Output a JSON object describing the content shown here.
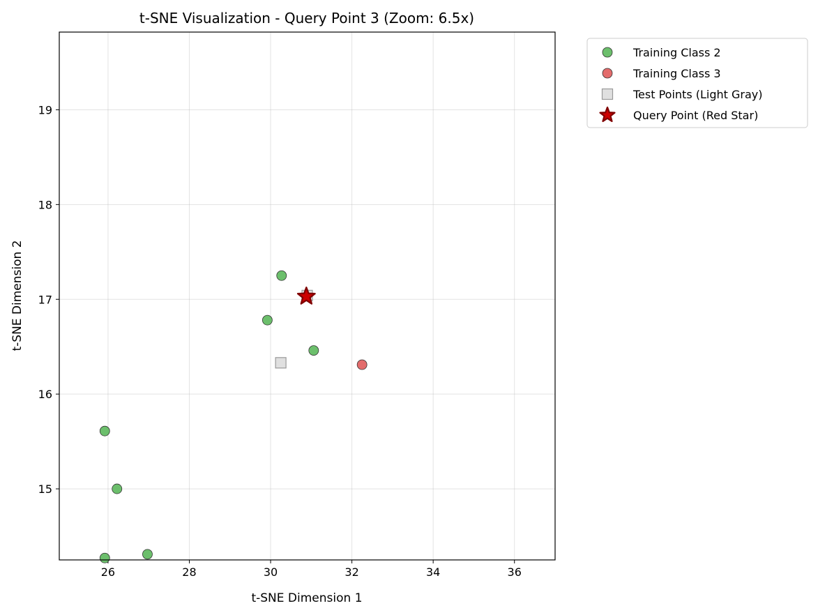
{
  "chart_data": {
    "type": "scatter",
    "title": "t-SNE Visualization - Query Point 3 (Zoom: 6.5x)",
    "xlabel": "t-SNE Dimension 1",
    "ylabel": "t-SNE Dimension 2",
    "xlim": [
      24.8,
      37.0
    ],
    "ylim": [
      14.25,
      19.82
    ],
    "xticks": [
      26,
      28,
      30,
      32,
      34,
      36
    ],
    "yticks": [
      15,
      16,
      17,
      18,
      19
    ],
    "grid": true,
    "legend_position": "outside-top-right",
    "series": [
      {
        "name": "Training Class 2",
        "marker": "circle",
        "color": "#5cb85c",
        "points": [
          {
            "x": 25.92,
            "y": 15.61
          },
          {
            "x": 26.22,
            "y": 15.0
          },
          {
            "x": 25.92,
            "y": 14.27
          },
          {
            "x": 26.97,
            "y": 14.31
          },
          {
            "x": 29.92,
            "y": 16.78
          },
          {
            "x": 30.27,
            "y": 17.25
          },
          {
            "x": 31.06,
            "y": 16.46
          }
        ]
      },
      {
        "name": "Training Class 3",
        "marker": "circle",
        "color": "#e05c5c",
        "points": [
          {
            "x": 32.25,
            "y": 16.31
          }
        ]
      },
      {
        "name": "Test Points (Light Gray)",
        "marker": "square",
        "color": "#e0e0e0",
        "points": [
          {
            "x": 30.25,
            "y": 16.33
          },
          {
            "x": 30.9,
            "y": 17.04
          }
        ]
      },
      {
        "name": "Query Point (Red Star)",
        "marker": "star",
        "color": "#cc0000",
        "points": [
          {
            "x": 30.88,
            "y": 17.03
          }
        ]
      }
    ]
  }
}
